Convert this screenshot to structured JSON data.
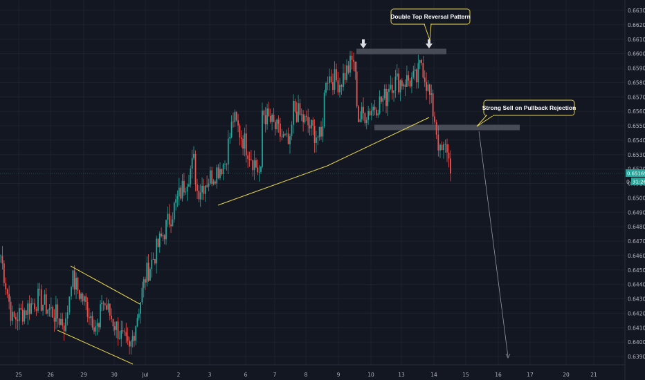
{
  "chart_data": {
    "type": "candlestick",
    "title": "",
    "ylim": [
      0.6387,
      0.6634
    ],
    "y_ticks": [
      "0.66300",
      "0.66200",
      "0.66100",
      "0.66000",
      "0.65900",
      "0.65800",
      "0.65700",
      "0.65600",
      "0.65500",
      "0.65400",
      "0.65300",
      "0.65200",
      "0.65100",
      "0.65000",
      "0.64900",
      "0.64800",
      "0.64700",
      "0.64600",
      "0.64500",
      "0.64400",
      "0.64300",
      "0.64200",
      "0.64100",
      "0.64000",
      "0.63900"
    ],
    "x_ticks": [
      "25",
      "26",
      "29",
      "30",
      "Jul",
      "2",
      "3",
      "6",
      "7",
      "8",
      "9",
      "10",
      "13",
      "14",
      "15",
      "16",
      "17",
      "20",
      "21"
    ],
    "price_path": [
      {
        "date": "25",
        "price": 0.646
      },
      {
        "date": "25",
        "price": 0.6415
      },
      {
        "date": "26",
        "price": 0.643
      },
      {
        "date": "26",
        "price": 0.6412
      },
      {
        "date": "29",
        "price": 0.6445
      },
      {
        "date": "29",
        "price": 0.6408
      },
      {
        "date": "30",
        "price": 0.643
      },
      {
        "date": "30",
        "price": 0.6393
      },
      {
        "date": "Jul",
        "price": 0.6445
      },
      {
        "date": "2",
        "price": 0.648
      },
      {
        "date": "2",
        "price": 0.6525
      },
      {
        "date": "3",
        "price": 0.6505
      },
      {
        "date": "3",
        "price": 0.6525
      },
      {
        "date": "6",
        "price": 0.6555
      },
      {
        "date": "6",
        "price": 0.6515
      },
      {
        "date": "7",
        "price": 0.656
      },
      {
        "date": "7",
        "price": 0.6535
      },
      {
        "date": "8",
        "price": 0.6562
      },
      {
        "date": "8",
        "price": 0.654
      },
      {
        "date": "9",
        "price": 0.6585
      },
      {
        "date": "9",
        "price": 0.658
      },
      {
        "date": "9",
        "price": 0.6596
      },
      {
        "date": "10",
        "price": 0.6555
      },
      {
        "date": "10",
        "price": 0.657
      },
      {
        "date": "13",
        "price": 0.658
      },
      {
        "date": "13",
        "price": 0.6582
      },
      {
        "date": "14",
        "price": 0.6595
      },
      {
        "date": "14",
        "price": 0.6555
      },
      {
        "date": "14",
        "price": 0.653
      },
      {
        "date": "14",
        "price": 0.6535
      },
      {
        "date": "14",
        "price": 0.65169
      }
    ],
    "current_price": "0.65169",
    "countdown": "31:26",
    "price_tag_partial": "0",
    "annotations": [
      {
        "text": "Double Top Reversal Pattern"
      },
      {
        "text": "Strong Sell on Pullback Rejection"
      }
    ],
    "colors": {
      "up": "#26a69a",
      "down": "#ef5350",
      "trendline": "#e8d44d",
      "zone": "#4a4e5a",
      "background": "#131722"
    }
  }
}
